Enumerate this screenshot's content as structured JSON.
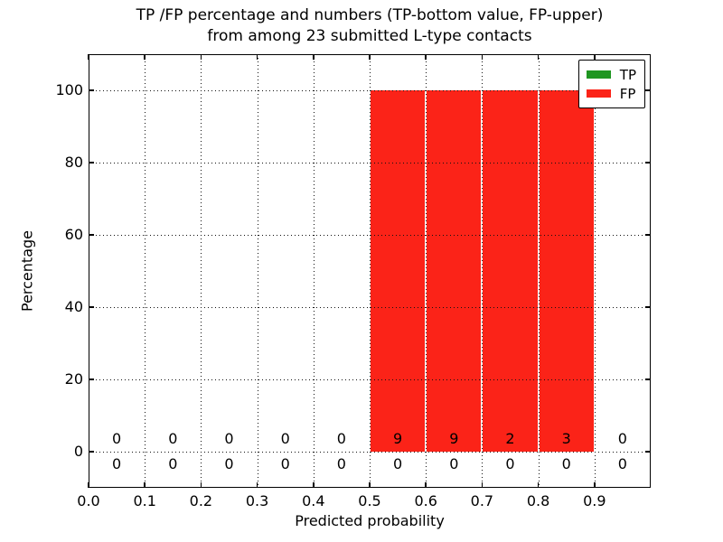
{
  "figure": {
    "title_line1": "TP /FP percentage and numbers (TP-bottom value, FP-upper)",
    "title_line2": "from among 23 submitted L-type contacts"
  },
  "axes": {
    "xlabel": "Predicted probability",
    "ylabel": "Percentage"
  },
  "legend": {
    "position": "upper right",
    "items": [
      {
        "label": "TP",
        "color": "#1f9621"
      },
      {
        "label": "FP",
        "color": "#fb2318"
      }
    ]
  },
  "chart_data": {
    "type": "bar",
    "stacked": true,
    "title": "TP /FP percentage and numbers (TP-bottom value, FP-upper) from among 23 submitted L-type contacts",
    "xlabel": "Predicted probability",
    "ylabel": "Percentage",
    "xlim": [
      0.0,
      1.0
    ],
    "ylim": [
      -10,
      110
    ],
    "xticks": [
      0.0,
      0.1,
      0.2,
      0.3,
      0.4,
      0.5,
      0.6,
      0.7,
      0.8,
      0.9
    ],
    "yticks": [
      0,
      20,
      40,
      60,
      80,
      100
    ],
    "grid": true,
    "grid_style": "dotted",
    "bin_width": 0.1,
    "bin_centers": [
      0.05,
      0.15,
      0.25,
      0.35,
      0.45,
      0.55,
      0.65,
      0.75,
      0.85,
      0.95
    ],
    "series": [
      {
        "name": "TP",
        "color": "#1f9621",
        "percent": [
          0,
          0,
          0,
          0,
          0,
          0,
          0,
          0,
          0,
          0
        ],
        "counts": [
          0,
          0,
          0,
          0,
          0,
          0,
          0,
          0,
          0,
          0
        ]
      },
      {
        "name": "FP",
        "color": "#fb2318",
        "percent": [
          0,
          0,
          0,
          0,
          0,
          100,
          100,
          100,
          100,
          0
        ],
        "counts": [
          0,
          0,
          0,
          0,
          0,
          9,
          9,
          2,
          3,
          0
        ]
      }
    ],
    "annotations": {
      "upper_row_series": "FP",
      "lower_row_series": "TP"
    },
    "total_contacts": 23,
    "legend_position": "upper right"
  }
}
